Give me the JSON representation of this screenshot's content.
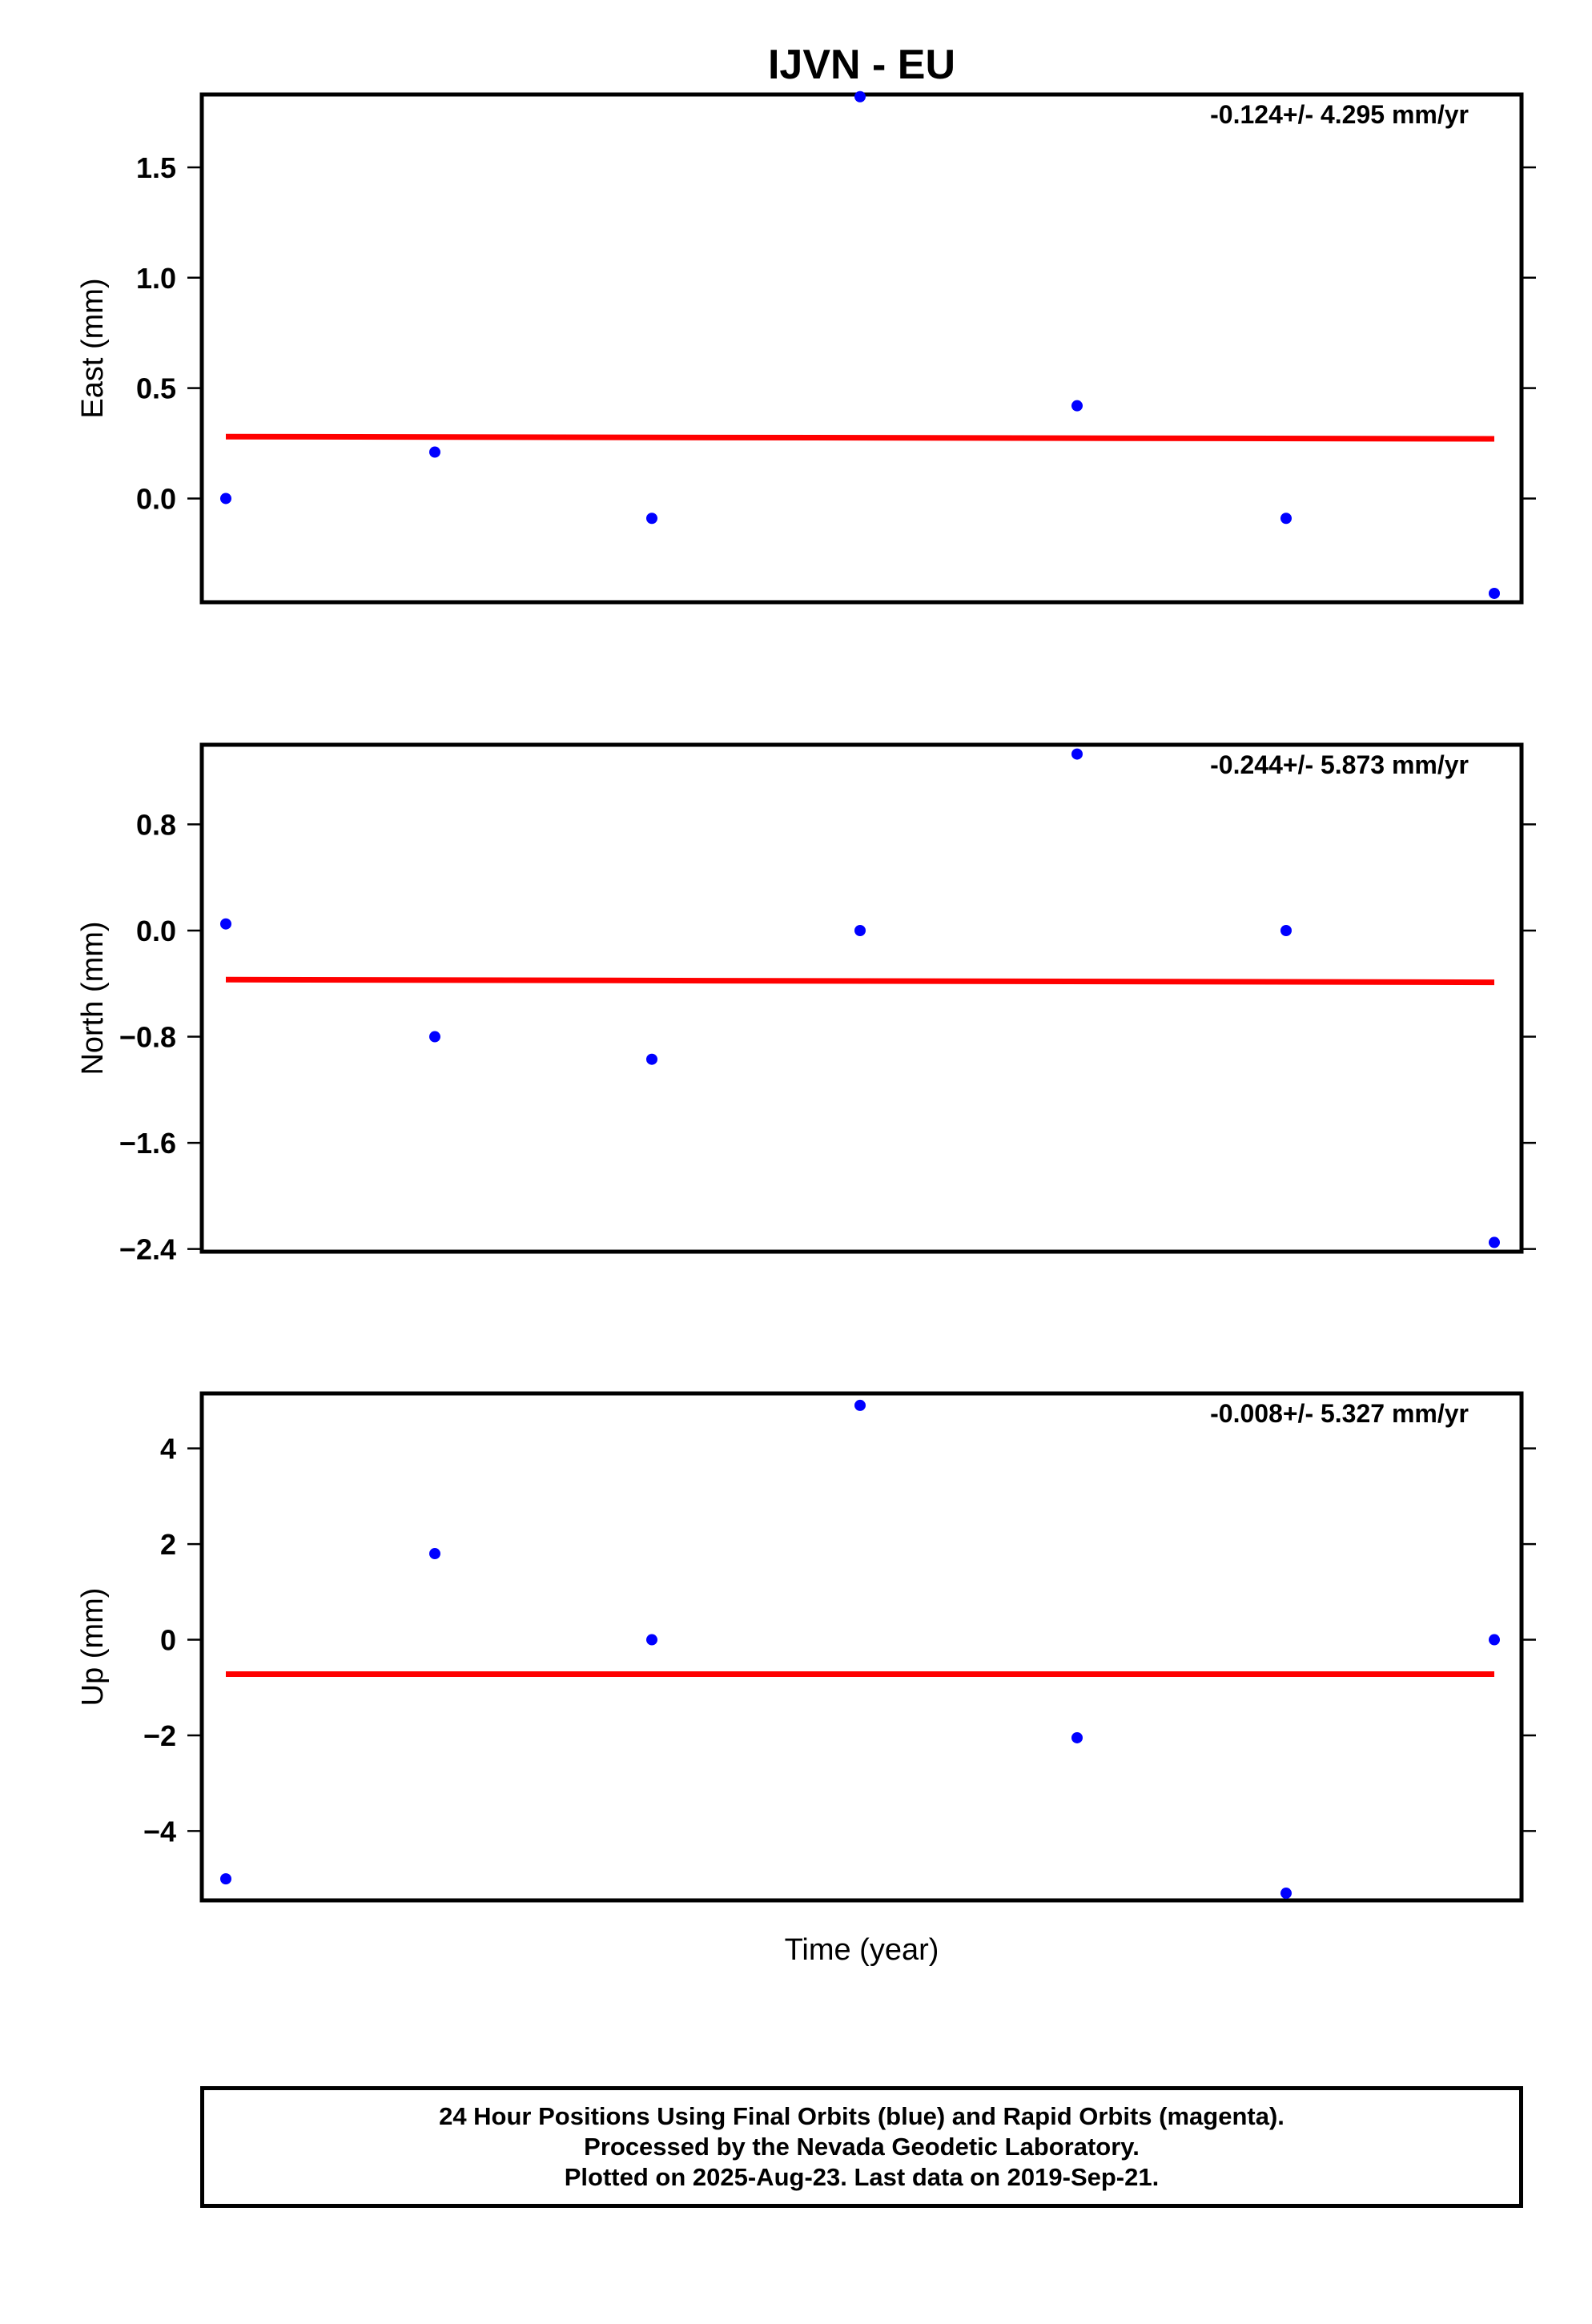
{
  "chart_data": {
    "title": "IJVN - EU",
    "xlabel": "Time (year)",
    "type": "scatter",
    "colors": {
      "points": "#0000ff",
      "fit": "#ff0000",
      "frame": "#000000"
    },
    "panels": [
      {
        "ylabel": "East (mm)",
        "rate": "-0.124+/- 4.295 mm/yr",
        "ylim": [
          -0.47,
          1.83
        ],
        "yticks": [
          1.5,
          1.0,
          0.5,
          0.0
        ],
        "ytick_labels": [
          "1.5",
          "1.0",
          "0.5",
          "0.0"
        ],
        "points": [
          0.0,
          0.21,
          -0.09,
          1.82,
          0.42,
          -0.09,
          -0.43
        ],
        "fit": [
          0.28,
          0.27
        ]
      },
      {
        "ylabel": "North (mm)",
        "rate": "-0.244+/- 5.873 mm/yr",
        "ylim": [
          -2.42,
          1.4
        ],
        "yticks": [
          0.8,
          0.0,
          -0.8,
          -1.6,
          -2.4
        ],
        "ytick_labels": [
          "0.8",
          "0.0",
          "−0.8",
          "−1.6",
          "−2.4"
        ],
        "points": [
          0.05,
          -0.8,
          -0.97,
          0.0,
          1.33,
          0.0,
          -2.35
        ],
        "fit": [
          -0.37,
          -0.39
        ]
      },
      {
        "ylabel": "Up (mm)",
        "rate": "-0.008+/- 5.327 mm/yr",
        "ylim": [
          -5.45,
          5.15
        ],
        "yticks": [
          4,
          2,
          0,
          -2,
          -4
        ],
        "ytick_labels": [
          "4",
          "2",
          "0",
          "−2",
          "−4"
        ],
        "points": [
          -5.0,
          1.8,
          0.0,
          4.9,
          -2.05,
          -5.3,
          0.0
        ],
        "fit": [
          -0.72,
          -0.72
        ]
      }
    ]
  },
  "footer": {
    "line1": "24 Hour Positions Using Final Orbits (blue) and Rapid Orbits (magenta).",
    "line2": "Processed by the Nevada Geodetic Laboratory.",
    "line3": "Plotted on 2025-Aug-23. Last data on 2019-Sep-21."
  }
}
